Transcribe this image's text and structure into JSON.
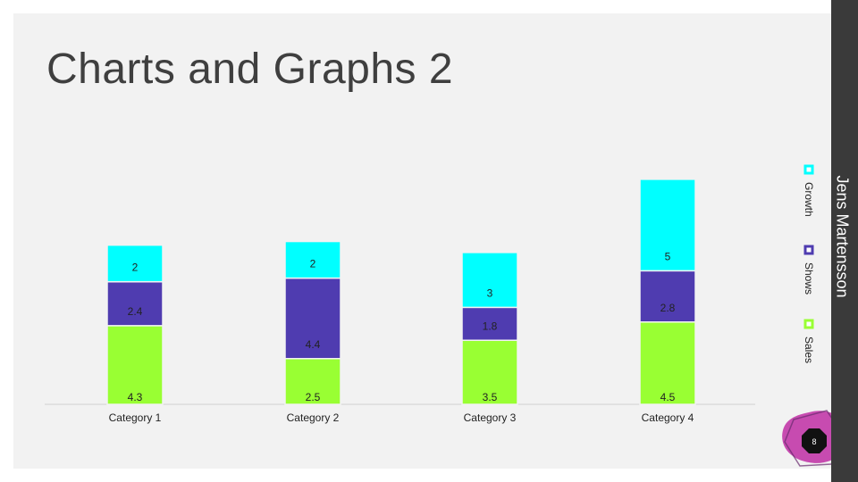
{
  "slide": {
    "title": "Charts and Graphs 2",
    "author": "Jens Martensson",
    "page_number": "8"
  },
  "colors": {
    "sales": "#99ff33",
    "shows": "#4f3cb0",
    "growth": "#00ffff",
    "band": "#3a3a3a",
    "accent_blob": "#c238a9"
  },
  "chart_data": {
    "type": "bar",
    "stacked": true,
    "categories": [
      "Category 1",
      "Category 2",
      "Category 3",
      "Category 4"
    ],
    "series": [
      {
        "name": "Sales",
        "values": [
          4.3,
          2.5,
          3.5,
          4.5
        ],
        "color": "#99ff33"
      },
      {
        "name": "Shows",
        "values": [
          2.4,
          4.4,
          1.8,
          2.8
        ],
        "color": "#4f3cb0"
      },
      {
        "name": "Growth",
        "values": [
          2,
          2,
          3,
          5
        ],
        "color": "#00ffff"
      }
    ],
    "legend_position": "right",
    "grid": false
  }
}
